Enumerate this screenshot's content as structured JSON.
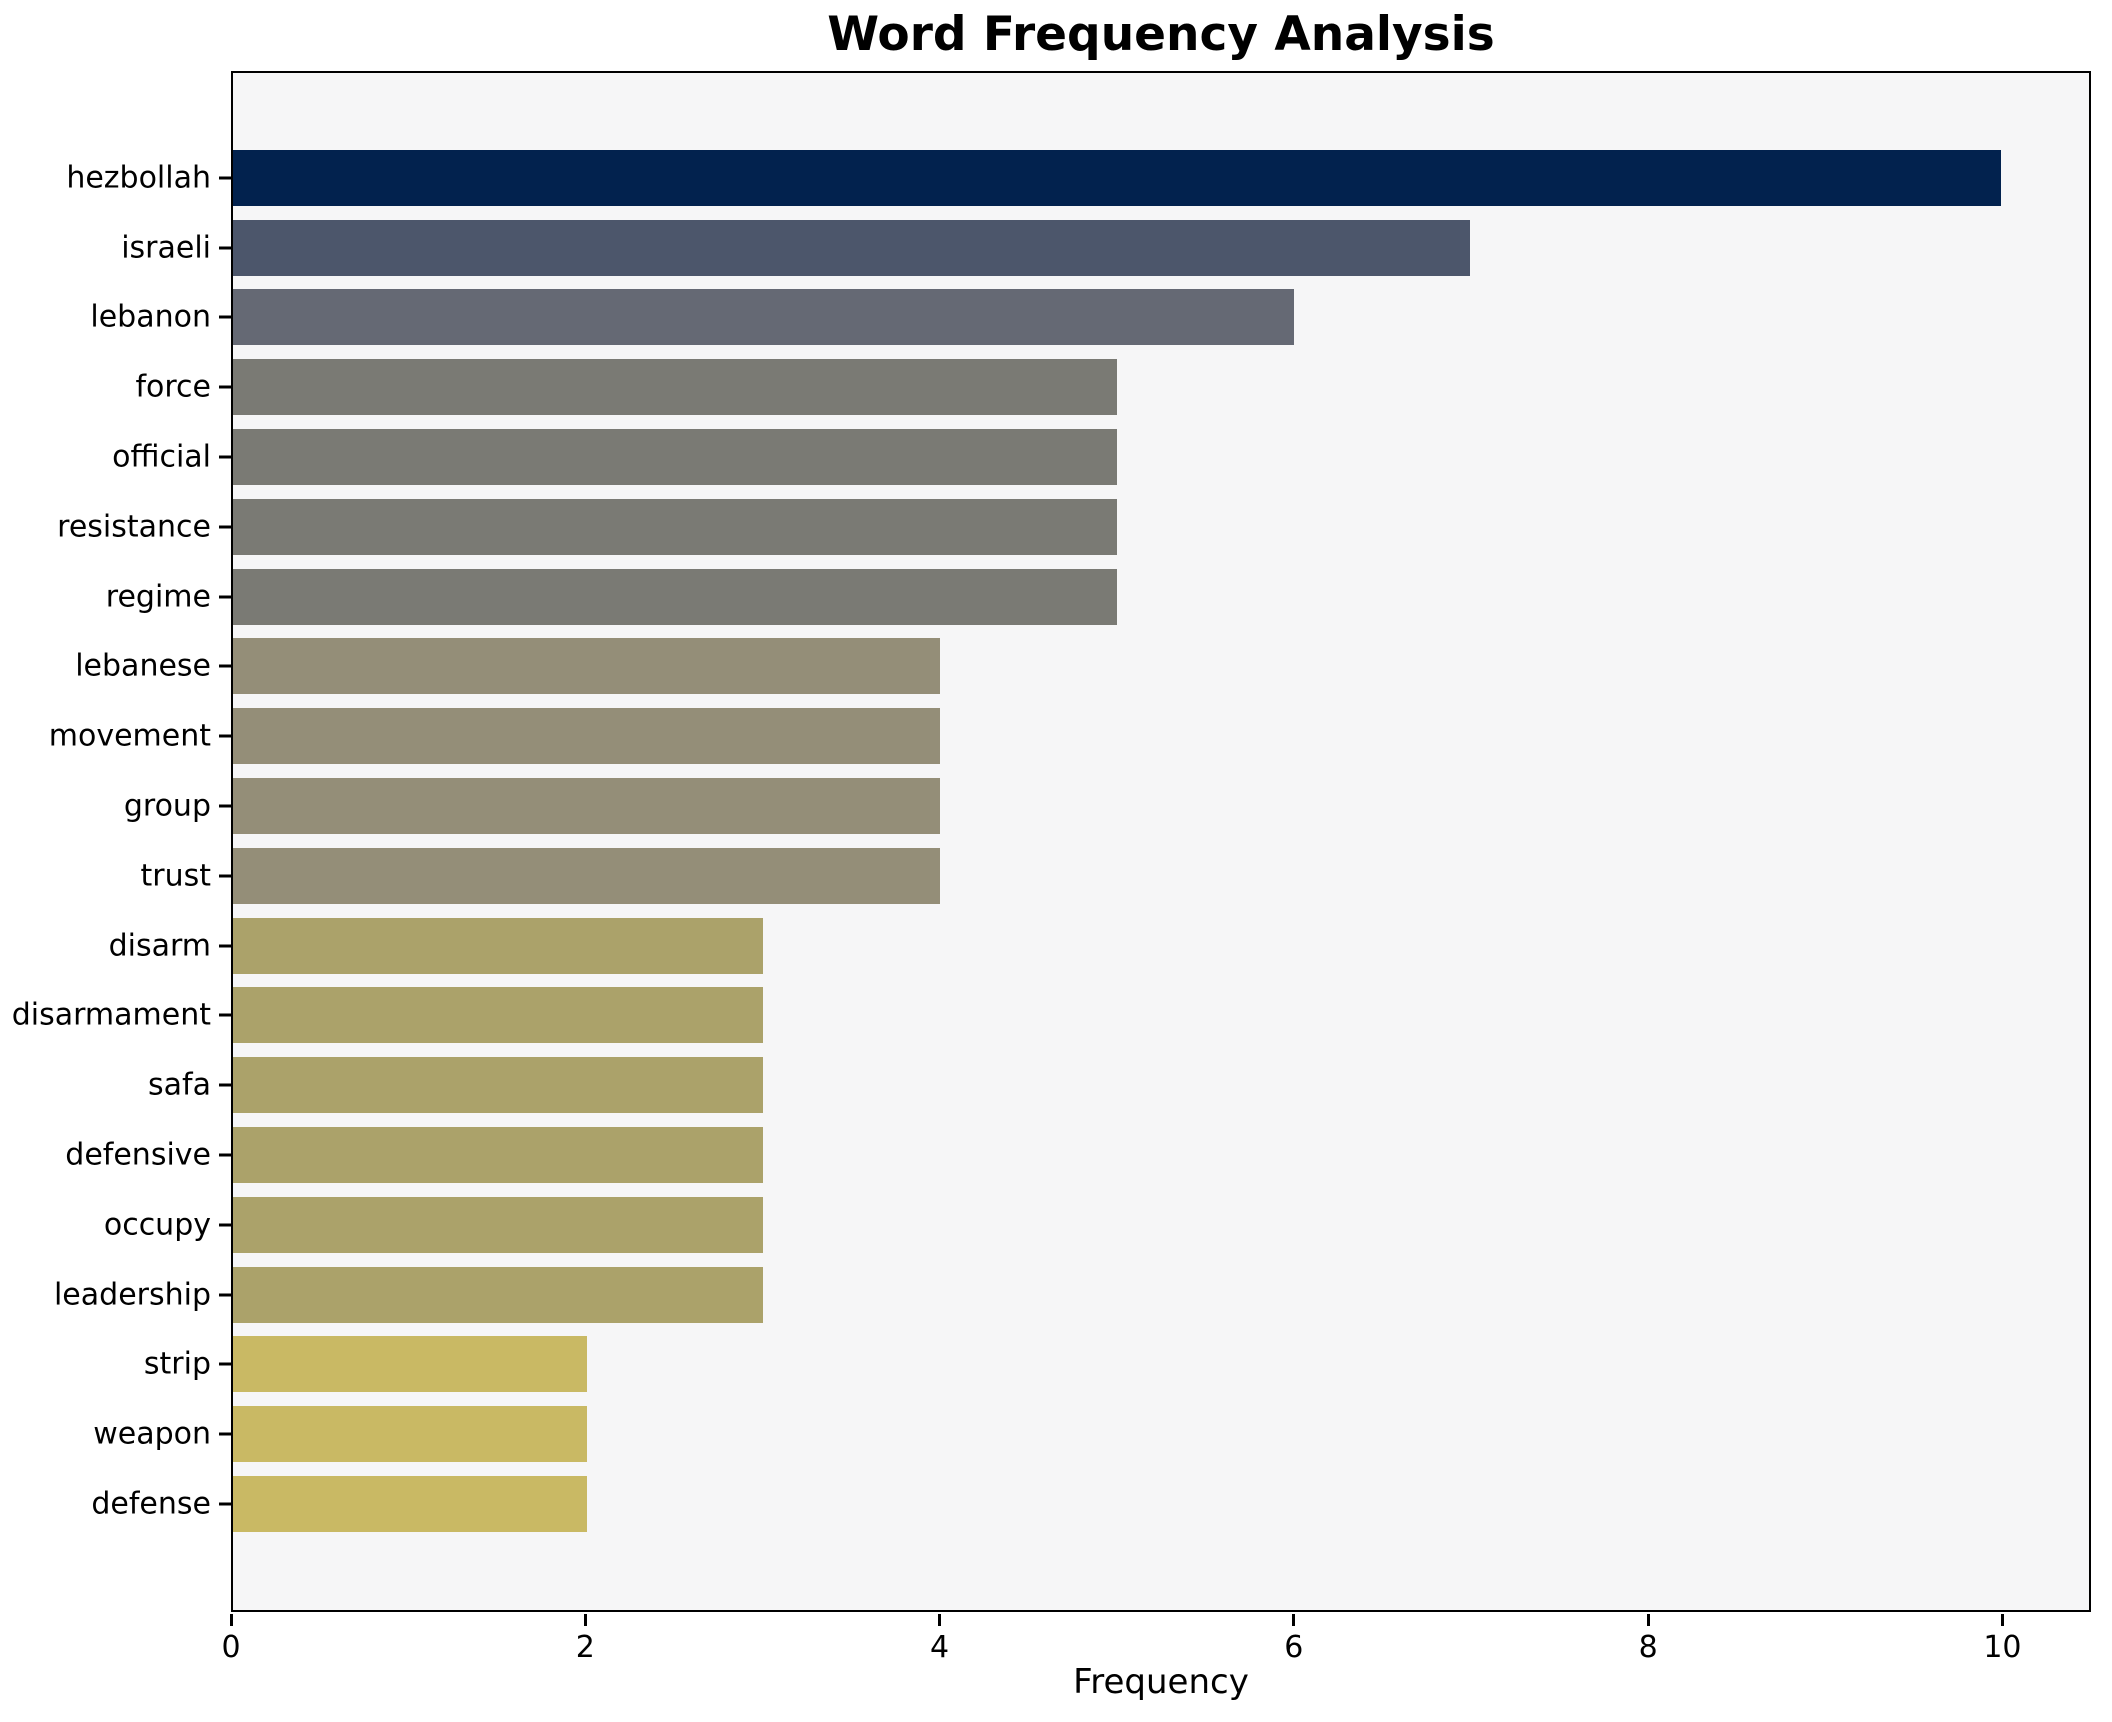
{
  "chart_data": {
    "type": "bar",
    "orientation": "horizontal",
    "title": "Word Frequency Analysis",
    "xlabel": "Frequency",
    "ylabel": "",
    "xlim": [
      0,
      10.5
    ],
    "xticks": [
      0,
      2,
      4,
      6,
      8,
      10
    ],
    "grid": false,
    "legend": false,
    "categories": [
      "hezbollah",
      "israeli",
      "lebanon",
      "force",
      "official",
      "resistance",
      "regime",
      "lebanese",
      "movement",
      "group",
      "trust",
      "disarm",
      "disarmament",
      "safa",
      "defensive",
      "occupy",
      "leadership",
      "strip",
      "weapon",
      "defense"
    ],
    "values": [
      10,
      7,
      6,
      5,
      5,
      5,
      5,
      4,
      4,
      4,
      4,
      3,
      3,
      3,
      3,
      3,
      3,
      2,
      2,
      2
    ],
    "bar_colors": [
      "#02224e",
      "#4c566b",
      "#656974",
      "#7a7a74",
      "#7a7a74",
      "#7a7a74",
      "#7a7a74",
      "#948e78",
      "#948e78",
      "#948e78",
      "#948e78",
      "#aba26a",
      "#aba26a",
      "#aba26a",
      "#aba26a",
      "#aba26a",
      "#aba26a",
      "#c9b964",
      "#c9b964",
      "#c9b964"
    ],
    "colors": {
      "figure_background": "#ffffff",
      "axes_background": "#f6f6f7",
      "spine": "#000000",
      "text": "#000000"
    }
  }
}
